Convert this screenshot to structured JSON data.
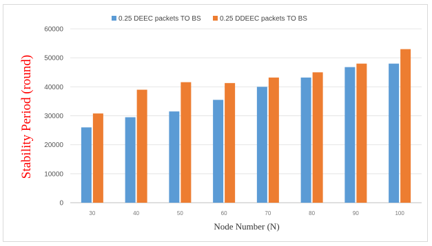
{
  "chart_data": {
    "type": "bar",
    "title": "",
    "xlabel": "Node Number (N)",
    "ylabel": "Stability Period (round)",
    "ylim": [
      0,
      60000
    ],
    "yticks": [
      0,
      10000,
      20000,
      30000,
      40000,
      50000,
      60000
    ],
    "categories": [
      "30",
      "40",
      "50",
      "60",
      "70",
      "80",
      "90",
      "100"
    ],
    "grid": true,
    "legend_position": "top",
    "ylabel_color": "#ff0000",
    "series": [
      {
        "name": "0.25 DEEC packets  TO  BS",
        "color": "#5b9bd5",
        "values": [
          26000,
          29500,
          31500,
          35500,
          40000,
          43200,
          46800,
          48000
        ]
      },
      {
        "name": "0.25 DDEEC packets  TO  BS",
        "color": "#ed7d31",
        "values": [
          30800,
          39000,
          41600,
          41300,
          43200,
          45000,
          48000,
          53000
        ]
      }
    ]
  }
}
